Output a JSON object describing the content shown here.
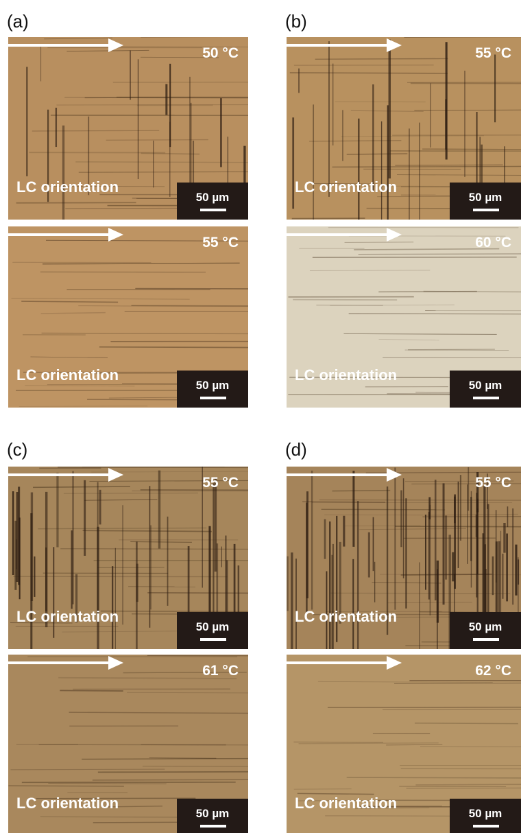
{
  "panels": [
    {
      "label": "(a)",
      "images": [
        {
          "temperature": "50 °C",
          "orientation": "LC orientation",
          "scale_bar": "50 µm"
        },
        {
          "temperature": "55 °C",
          "orientation": "LC orientation",
          "scale_bar": "50 µm"
        }
      ]
    },
    {
      "label": "(b)",
      "images": [
        {
          "temperature": "55 °C",
          "orientation": "LC orientation",
          "scale_bar": "50 µm"
        },
        {
          "temperature": "60 °C",
          "orientation": "LC orientation",
          "scale_bar": "50 µm"
        }
      ]
    },
    {
      "label": "(c)",
      "images": [
        {
          "temperature": "55 °C",
          "orientation": "LC orientation",
          "scale_bar": "50 µm"
        },
        {
          "temperature": "61 °C",
          "orientation": "LC orientation",
          "scale_bar": "50 µm"
        }
      ]
    },
    {
      "label": "(d)",
      "images": [
        {
          "temperature": "55 °C",
          "orientation": "LC orientation",
          "scale_bar": "50 µm"
        },
        {
          "temperature": "62 °C",
          "orientation": "LC orientation",
          "scale_bar": "50 µm"
        }
      ]
    }
  ]
}
